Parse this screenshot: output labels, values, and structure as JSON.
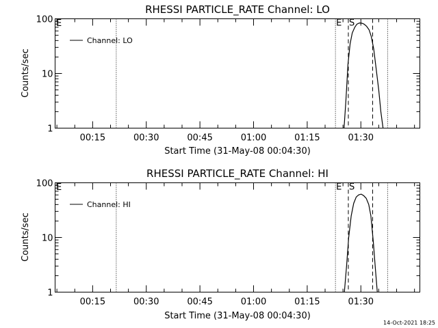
{
  "footer_timestamp": "14-Oct-2021 18:25",
  "chart_data": [
    {
      "type": "line",
      "title": "RHESSI PARTICLE_RATE Channel: LO",
      "xlabel": "Start Time (31-May-08 00:04:30)",
      "ylabel": "Counts/sec",
      "yscale": "log",
      "ylim": [
        1,
        100
      ],
      "x_units": "minutes after 00:04:30",
      "xlim": [
        0,
        102
      ],
      "xticks": [
        {
          "value": 10.5,
          "label": "00:15"
        },
        {
          "value": 25.5,
          "label": "00:30"
        },
        {
          "value": 40.5,
          "label": "00:45"
        },
        {
          "value": 55.5,
          "label": "01:00"
        },
        {
          "value": 70.5,
          "label": "01:15"
        },
        {
          "value": 85.5,
          "label": "01:30"
        }
      ],
      "yticks": [
        {
          "value": 1,
          "label": "1"
        },
        {
          "value": 10,
          "label": "10"
        },
        {
          "value": 100,
          "label": "100"
        }
      ],
      "legend": {
        "placement": "top-left",
        "label": "Channel: LO"
      },
      "markers": [
        {
          "x": 17.1,
          "style": "dotted",
          "label": ""
        },
        {
          "x": 78.4,
          "style": "dotted",
          "label": "E"
        },
        {
          "x": 82.0,
          "style": "dashed",
          "label": "S"
        },
        {
          "x": 88.8,
          "style": "dashed",
          "label": ""
        },
        {
          "x": 93.0,
          "style": "dotted",
          "label": ""
        }
      ],
      "marker_E_left": "E",
      "series": [
        {
          "name": "Channel: LO",
          "x": [
            80.8,
            81.3,
            81.9,
            82.5,
            83.1,
            83.8,
            84.4,
            85.1,
            85.8,
            86.4,
            87.1,
            87.8,
            88.4,
            89.1,
            89.8,
            90.5,
            91.1,
            91.7
          ],
          "y": [
            1.0,
            3.0,
            15,
            35,
            55,
            70,
            80,
            84,
            83,
            80,
            73,
            63,
            48,
            28,
            12,
            5,
            2,
            1.0
          ]
        }
      ]
    },
    {
      "type": "line",
      "title": "RHESSI PARTICLE_RATE Channel: HI",
      "xlabel": "Start Time (31-May-08 00:04:30)",
      "ylabel": "Counts/sec",
      "yscale": "log",
      "ylim": [
        1,
        100
      ],
      "x_units": "minutes after 00:04:30",
      "xlim": [
        0,
        102
      ],
      "xticks": [
        {
          "value": 10.5,
          "label": "00:15"
        },
        {
          "value": 25.5,
          "label": "00:30"
        },
        {
          "value": 40.5,
          "label": "00:45"
        },
        {
          "value": 55.5,
          "label": "01:00"
        },
        {
          "value": 70.5,
          "label": "01:15"
        },
        {
          "value": 85.5,
          "label": "01:30"
        }
      ],
      "yticks": [
        {
          "value": 1,
          "label": "1"
        },
        {
          "value": 10,
          "label": "10"
        },
        {
          "value": 100,
          "label": "100"
        }
      ],
      "legend": {
        "placement": "top-left",
        "label": "Channel: HI"
      },
      "markers": [
        {
          "x": 17.1,
          "style": "dotted",
          "label": ""
        },
        {
          "x": 78.4,
          "style": "dotted",
          "label": "E"
        },
        {
          "x": 82.0,
          "style": "dashed",
          "label": "S"
        },
        {
          "x": 88.8,
          "style": "dashed",
          "label": ""
        },
        {
          "x": 93.0,
          "style": "dotted",
          "label": ""
        }
      ],
      "marker_E_left": "E",
      "series": [
        {
          "name": "Channel: HI",
          "x": [
            80.9,
            81.5,
            82.1,
            82.8,
            83.5,
            84.2,
            84.9,
            85.6,
            86.3,
            87.0,
            87.7,
            88.3,
            89.0,
            89.6,
            90.1
          ],
          "y": [
            1.0,
            3.0,
            10,
            25,
            42,
            55,
            60,
            62,
            58,
            52,
            40,
            25,
            8,
            2.5,
            1.0
          ]
        }
      ]
    }
  ]
}
